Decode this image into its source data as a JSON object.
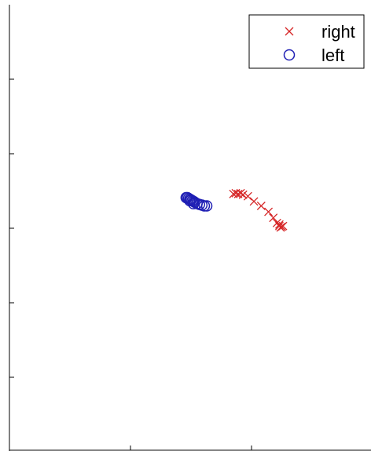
{
  "chart_data": {
    "type": "scatter",
    "title": "",
    "xlabel": "",
    "ylabel": "",
    "xlim": [
      0,
      3
    ],
    "ylim": [
      0,
      6
    ],
    "x_ticks": [
      1,
      2
    ],
    "y_ticks": [
      1,
      2,
      3,
      4,
      5
    ],
    "grid": false,
    "legend": "top-right",
    "series": [
      {
        "name": "right",
        "marker": "x",
        "color": "#d62728",
        "points": [
          {
            "x": 1.85,
            "y": 3.46
          },
          {
            "x": 1.87,
            "y": 3.47
          },
          {
            "x": 1.89,
            "y": 3.46
          },
          {
            "x": 1.91,
            "y": 3.47
          },
          {
            "x": 1.93,
            "y": 3.45
          },
          {
            "x": 1.97,
            "y": 3.43
          },
          {
            "x": 2.02,
            "y": 3.36
          },
          {
            "x": 2.08,
            "y": 3.3
          },
          {
            "x": 2.14,
            "y": 3.22
          },
          {
            "x": 2.18,
            "y": 3.14
          },
          {
            "x": 2.21,
            "y": 3.07
          },
          {
            "x": 2.23,
            "y": 3.03
          },
          {
            "x": 2.24,
            "y": 3.01
          },
          {
            "x": 2.25,
            "y": 3.02
          },
          {
            "x": 2.26,
            "y": 3.03
          },
          {
            "x": 2.23,
            "y": 3.05
          }
        ]
      },
      {
        "name": "left",
        "marker": "o",
        "color": "#1f1fb4",
        "points": [
          {
            "x": 1.46,
            "y": 3.41
          },
          {
            "x": 1.47,
            "y": 3.41
          },
          {
            "x": 1.48,
            "y": 3.4
          },
          {
            "x": 1.49,
            "y": 3.39
          },
          {
            "x": 1.5,
            "y": 3.38
          },
          {
            "x": 1.51,
            "y": 3.37
          },
          {
            "x": 1.52,
            "y": 3.36
          },
          {
            "x": 1.53,
            "y": 3.35
          },
          {
            "x": 1.55,
            "y": 3.33
          },
          {
            "x": 1.57,
            "y": 3.32
          },
          {
            "x": 1.59,
            "y": 3.31
          },
          {
            "x": 1.61,
            "y": 3.3
          },
          {
            "x": 1.63,
            "y": 3.3
          },
          {
            "x": 1.49,
            "y": 3.37
          },
          {
            "x": 1.52,
            "y": 3.33
          }
        ]
      }
    ]
  }
}
